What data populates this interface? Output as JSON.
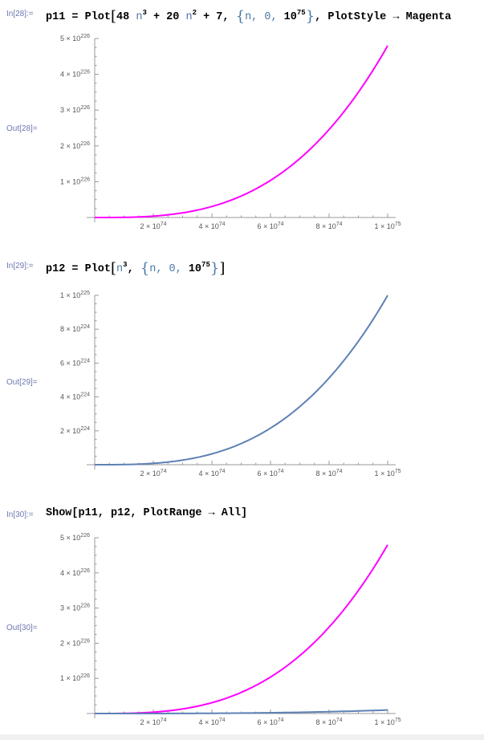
{
  "cells": [
    {
      "in_label": "In[28]:=",
      "out_label": "Out[28]=",
      "code": "p11 = Plot[48 n³ + 20 n² + 7, {n, 0, 10⁷⁵}, PlotStyle → Magenta]",
      "chart_data": {
        "type": "line",
        "xlim": [
          0,
          1e+75
        ],
        "ylim": [
          0,
          5e+226
        ],
        "x_ticks": [
          "2 × 10^74",
          "4 × 10^74",
          "6 × 10^74",
          "8 × 10^74",
          "1 × 10^75"
        ],
        "y_ticks": [
          "1 × 10^226",
          "2 × 10^226",
          "3 × 10^226",
          "4 × 10^226",
          "5 × 10^226"
        ],
        "series": [
          {
            "formula": "48 n^3 + 20 n^2 + 7",
            "color": "#ff00ff",
            "x": [
              0,
              2e+74,
              4e+74,
              6e+74,
              8e+74,
              1e+75
            ],
            "y": [
              7,
              3.84e+224,
              3.072e+225,
              1.0368e+226,
              2.4576e+226,
              4.8e+226
            ]
          }
        ]
      }
    },
    {
      "in_label": "In[29]:=",
      "out_label": "Out[29]=",
      "code": "p12 = Plot[n³, {n, 0, 10⁷⁵}]",
      "chart_data": {
        "type": "line",
        "xlim": [
          0,
          1e+75
        ],
        "ylim": [
          0,
          1e+225
        ],
        "x_ticks": [
          "2 × 10^74",
          "4 × 10^74",
          "6 × 10^74",
          "8 × 10^74",
          "1 × 10^75"
        ],
        "y_ticks": [
          "2 × 10^224",
          "4 × 10^224",
          "6 × 10^224",
          "8 × 10^224",
          "1 × 10^225"
        ],
        "series": [
          {
            "formula": "n^3",
            "color": "#5e81b5",
            "x": [
              0,
              2e+74,
              4e+74,
              6e+74,
              8e+74,
              1e+75
            ],
            "y": [
              0,
              8e+222,
              6.4e+223,
              2.16e+224,
              5.12e+224,
              1e+225
            ]
          }
        ]
      }
    },
    {
      "in_label": "In[30]:=",
      "out_label": "Out[30]=",
      "code": "Show[p11, p12, PlotRange → All]",
      "chart_data": {
        "type": "line",
        "xlim": [
          0,
          1e+75
        ],
        "ylim": [
          0,
          5e+226
        ],
        "x_ticks": [
          "2 × 10^74",
          "4 × 10^74",
          "6 × 10^74",
          "8 × 10^74",
          "1 × 10^75"
        ],
        "y_ticks": [
          "1 × 10^226",
          "2 × 10^226",
          "3 × 10^226",
          "4 × 10^226",
          "5 × 10^226"
        ],
        "series": [
          {
            "formula": "48 n^3 + 20 n^2 + 7",
            "color": "#ff00ff",
            "x": [
              0,
              2e+74,
              4e+74,
              6e+74,
              8e+74,
              1e+75
            ],
            "y": [
              7,
              3.84e+224,
              3.072e+225,
              1.0368e+226,
              2.4576e+226,
              4.8e+226
            ]
          },
          {
            "formula": "n^3",
            "color": "#5e81b5",
            "x": [
              0,
              2e+74,
              4e+74,
              6e+74,
              8e+74,
              1e+75
            ],
            "y": [
              0,
              8e+222,
              6.4e+223,
              2.16e+224,
              5.12e+224,
              1e+225
            ]
          }
        ]
      }
    }
  ]
}
